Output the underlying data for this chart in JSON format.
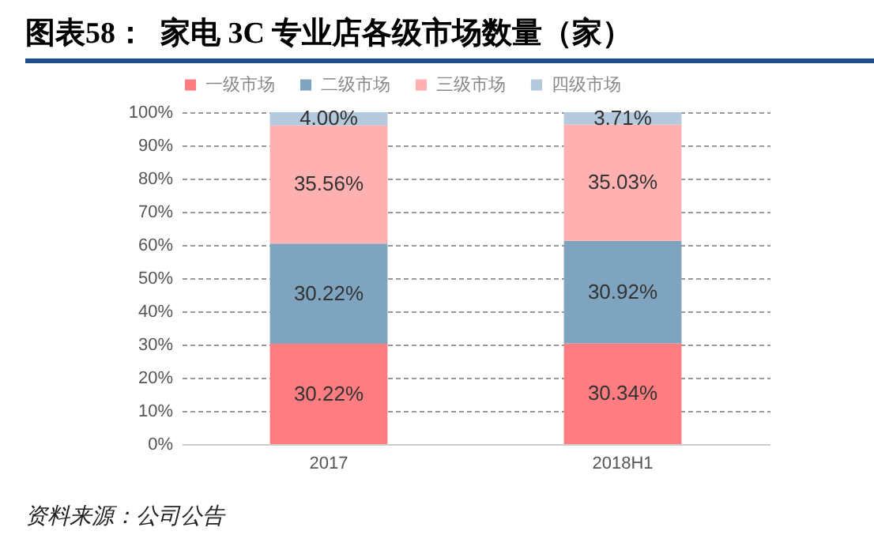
{
  "chart_data": {
    "type": "bar",
    "title": "图表58：  家电 3C 专业店各级市场数量（家）",
    "stacked": true,
    "categories": [
      "2017",
      "2018H1"
    ],
    "series": [
      {
        "name": "一级市场",
        "color": "#ff7c80",
        "values": [
          30.22,
          30.34
        ],
        "value_labels": [
          "30.22%",
          "30.34%"
        ]
      },
      {
        "name": "二级市场",
        "color": "#7fa4bf",
        "values": [
          30.22,
          30.92
        ],
        "value_labels": [
          "30.22%",
          "30.92%"
        ]
      },
      {
        "name": "三级市场",
        "color": "#ffb0b1",
        "values": [
          35.56,
          35.03
        ],
        "value_labels": [
          "35.56%",
          "35.03%"
        ]
      },
      {
        "name": "四级市场",
        "color": "#b4c9db",
        "values": [
          4.0,
          3.71
        ],
        "value_labels": [
          "4.00%",
          "3.71%"
        ]
      }
    ],
    "ylim": [
      0,
      100
    ],
    "yticks": [
      {
        "value": 0,
        "label": "0%"
      },
      {
        "value": 10,
        "label": "10%"
      },
      {
        "value": 20,
        "label": "20%"
      },
      {
        "value": 30,
        "label": "30%"
      },
      {
        "value": 40,
        "label": "40%"
      },
      {
        "value": 50,
        "label": "50%"
      },
      {
        "value": 60,
        "label": "60%"
      },
      {
        "value": 70,
        "label": "70%"
      },
      {
        "value": 80,
        "label": "80%"
      },
      {
        "value": 90,
        "label": "90%"
      },
      {
        "value": 100,
        "label": "100%"
      }
    ],
    "grid": "y",
    "legend": "top",
    "annotations": [
      "资料来源：公司公告"
    ]
  }
}
